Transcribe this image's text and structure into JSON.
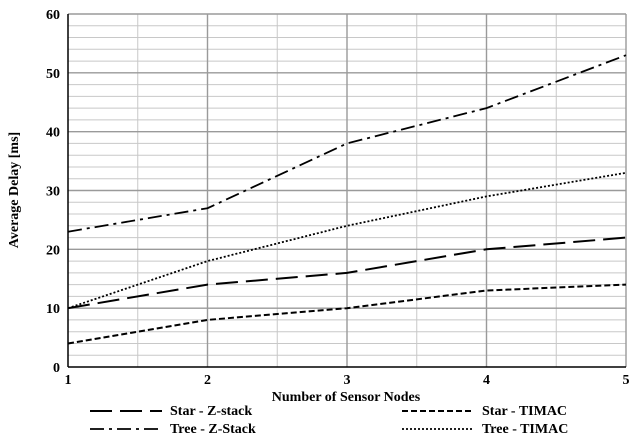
{
  "chart_data": {
    "type": "line",
    "title": "",
    "xlabel": "Number of Sensor Nodes",
    "ylabel": "Average Delay [ms]",
    "x": [
      1,
      2,
      3,
      4,
      5
    ],
    "xlim": [
      1,
      5
    ],
    "ylim": [
      0,
      60
    ],
    "x_ticks": [
      "1",
      "2",
      "3",
      "4",
      "5"
    ],
    "y_ticks": [
      "0",
      "10",
      "20",
      "30",
      "40",
      "50",
      "60"
    ],
    "grid": true,
    "legend_position": "bottom",
    "series": [
      {
        "name": "Star - Z-stack",
        "values": [
          10,
          14,
          16,
          20,
          22
        ],
        "dash": "long-dash"
      },
      {
        "name": "Star - TIMAC",
        "values": [
          4,
          8,
          10,
          13,
          14
        ],
        "dash": "short-dash"
      },
      {
        "name": "Tree - Z-Stack",
        "values": [
          23,
          27,
          38,
          44,
          53
        ],
        "dash": "dash-dot"
      },
      {
        "name": "Tree - TIMAC",
        "values": [
          10,
          18,
          24,
          29,
          33
        ],
        "dash": "dotted"
      }
    ],
    "colors": {
      "line": "#000000",
      "grid_major": "#9a9a9a",
      "grid_minor": "#c8c8c8",
      "axis": "#000000"
    }
  }
}
